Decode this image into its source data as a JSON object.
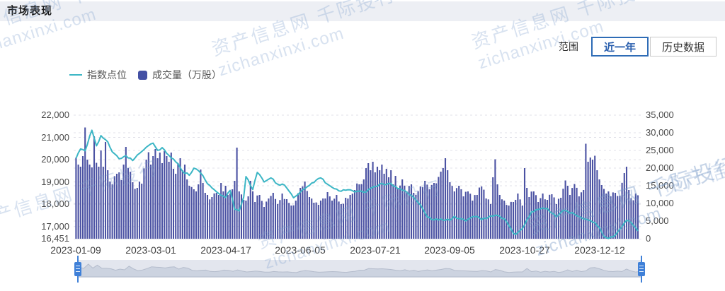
{
  "page": {
    "title": "市场表现"
  },
  "watermark": {
    "line1": "资产信息网 千际投行",
    "line2": "zichanxinxi.com"
  },
  "controls": {
    "range_label": "范围",
    "buttons": [
      {
        "label": "近一年",
        "active": true
      },
      {
        "label": "历史数据",
        "active": false
      }
    ],
    "accent": "#2e6cb6"
  },
  "legend": [
    {
      "label": "指数点位",
      "type": "line",
      "color": "#3cb6c5"
    },
    {
      "label": "成交量（万股）",
      "type": "bar",
      "color": "#4b52a3"
    }
  ],
  "chart_data": {
    "type": "bar+line",
    "n_points": 249,
    "grid": "dashed",
    "grid_color": "#e0e0e8",
    "x_ticks": [
      {
        "day": 0,
        "label": "2023-01-09"
      },
      {
        "day": 33,
        "label": "2023-03-01"
      },
      {
        "day": 66,
        "label": "2023-04-17"
      },
      {
        "day": 99,
        "label": "2023-06-05"
      },
      {
        "day": 132,
        "label": "2023-07-21"
      },
      {
        "day": 165,
        "label": "2023-09-05"
      },
      {
        "day": 198,
        "label": "2023-10-27"
      },
      {
        "day": 231,
        "label": "2023-12-12"
      }
    ],
    "left_axis": {
      "name": "指数点位",
      "min": 16451,
      "max": 22000,
      "ticks": [
        {
          "v": 22000,
          "label": "22,000"
        },
        {
          "v": 21000,
          "label": "21,000"
        },
        {
          "v": 20000,
          "label": "20,000"
        },
        {
          "v": 19000,
          "label": "19,000"
        },
        {
          "v": 18000,
          "label": "18,000"
        },
        {
          "v": 17000,
          "label": "17,000"
        },
        {
          "v": 16451,
          "label": "16,451"
        }
      ]
    },
    "right_axis": {
      "name": "成交量（万股）",
      "min": 0,
      "max": 35000,
      "ticks": [
        {
          "v": 35000,
          "label": "35,000"
        },
        {
          "v": 30000,
          "label": "30,000"
        },
        {
          "v": 25000,
          "label": "25,000"
        },
        {
          "v": 20000,
          "label": "20,000"
        },
        {
          "v": 15000,
          "label": "15,000"
        },
        {
          "v": 10000,
          "label": "10,000"
        },
        {
          "v": 5000,
          "label": "5,000"
        },
        {
          "v": 0,
          "label": "0"
        }
      ]
    },
    "series": [
      {
        "name": "指数点位",
        "type": "line",
        "axis": "left",
        "color": "#3cb6c5",
        "anchors": [
          [
            0,
            20060
          ],
          [
            2,
            20480
          ],
          [
            4,
            20400
          ],
          [
            7,
            21320
          ],
          [
            9,
            20620
          ],
          [
            11,
            21080
          ],
          [
            14,
            20800
          ],
          [
            16,
            20350
          ],
          [
            19,
            20040
          ],
          [
            22,
            20180
          ],
          [
            25,
            19960
          ],
          [
            28,
            20280
          ],
          [
            31,
            20560
          ],
          [
            34,
            20740
          ],
          [
            36,
            20420
          ],
          [
            38,
            20540
          ],
          [
            42,
            20080
          ],
          [
            45,
            19820
          ],
          [
            47,
            19480
          ],
          [
            50,
            19300
          ],
          [
            52,
            19620
          ],
          [
            55,
            19400
          ],
          [
            58,
            18920
          ],
          [
            61,
            18650
          ],
          [
            63,
            18480
          ],
          [
            66,
            18300
          ],
          [
            68,
            18620
          ],
          [
            70,
            17780
          ],
          [
            72,
            17700
          ],
          [
            74,
            18320
          ],
          [
            75,
            19240
          ],
          [
            78,
            18660
          ],
          [
            80,
            19430
          ],
          [
            83,
            19000
          ],
          [
            86,
            19180
          ],
          [
            89,
            18900
          ],
          [
            92,
            18860
          ],
          [
            96,
            18290
          ],
          [
            99,
            18550
          ],
          [
            101,
            18700
          ],
          [
            104,
            18950
          ],
          [
            108,
            19180
          ],
          [
            111,
            18900
          ],
          [
            116,
            18600
          ],
          [
            120,
            18650
          ],
          [
            123,
            18550
          ],
          [
            128,
            18550
          ],
          [
            132,
            18800
          ],
          [
            134,
            18900
          ],
          [
            139,
            18930
          ],
          [
            142,
            18700
          ],
          [
            146,
            18540
          ],
          [
            150,
            18200
          ],
          [
            153,
            17800
          ],
          [
            155,
            17430
          ],
          [
            158,
            17300
          ],
          [
            161,
            17340
          ],
          [
            165,
            17280
          ],
          [
            167,
            17460
          ],
          [
            169,
            17350
          ],
          [
            172,
            17250
          ],
          [
            174,
            17380
          ],
          [
            177,
            17450
          ],
          [
            179,
            17300
          ],
          [
            182,
            17420
          ],
          [
            186,
            17500
          ],
          [
            189,
            17350
          ],
          [
            191,
            17050
          ],
          [
            193,
            16700
          ],
          [
            194,
            16640
          ],
          [
            197,
            16900
          ],
          [
            199,
            17300
          ],
          [
            201,
            17660
          ],
          [
            203,
            17750
          ],
          [
            208,
            17810
          ],
          [
            212,
            17430
          ],
          [
            215,
            17720
          ],
          [
            220,
            17550
          ],
          [
            223,
            17400
          ],
          [
            225,
            17340
          ],
          [
            229,
            17180
          ],
          [
            231,
            16950
          ],
          [
            233,
            16560
          ],
          [
            235,
            16460
          ],
          [
            237,
            16540
          ],
          [
            239,
            16750
          ],
          [
            241,
            17000
          ],
          [
            243,
            17280
          ],
          [
            245,
            17180
          ],
          [
            247,
            16950
          ],
          [
            248,
            16800
          ]
        ]
      },
      {
        "name": "成交量（万股）",
        "type": "bar",
        "axis": "right",
        "color": "#4b52a3",
        "anchors": [
          [
            0,
            23000
          ],
          [
            1,
            21000
          ],
          [
            2,
            20400
          ],
          [
            3,
            23400
          ],
          [
            4,
            31500
          ],
          [
            5,
            22400
          ],
          [
            6,
            21000
          ],
          [
            7,
            20200
          ],
          [
            8,
            29000
          ],
          [
            9,
            21500
          ],
          [
            10,
            20400
          ],
          [
            11,
            25000
          ],
          [
            12,
            20400
          ],
          [
            13,
            27400
          ],
          [
            14,
            19400
          ],
          [
            15,
            16200
          ],
          [
            16,
            15400
          ],
          [
            18,
            18400
          ],
          [
            20,
            16600
          ],
          [
            21,
            21000
          ],
          [
            22,
            26000
          ],
          [
            23,
            20000
          ],
          [
            25,
            16000
          ],
          [
            27,
            14400
          ],
          [
            29,
            15600
          ],
          [
            31,
            22400
          ],
          [
            32,
            24500
          ],
          [
            33,
            21000
          ],
          [
            34,
            23400
          ],
          [
            35,
            25400
          ],
          [
            36,
            22800
          ],
          [
            37,
            24400
          ],
          [
            38,
            21400
          ],
          [
            39,
            24800
          ],
          [
            40,
            23400
          ],
          [
            41,
            21800
          ],
          [
            42,
            24400
          ],
          [
            43,
            19800
          ],
          [
            44,
            18400
          ],
          [
            45,
            21400
          ],
          [
            46,
            22800
          ],
          [
            47,
            19400
          ],
          [
            48,
            21000
          ],
          [
            49,
            16800
          ],
          [
            50,
            15000
          ],
          [
            52,
            14000
          ],
          [
            53,
            13400
          ],
          [
            54,
            15400
          ],
          [
            55,
            19600
          ],
          [
            56,
            15800
          ],
          [
            57,
            13000
          ],
          [
            58,
            12400
          ],
          [
            60,
            11800
          ],
          [
            62,
            13000
          ],
          [
            63,
            12400
          ],
          [
            64,
            15800
          ],
          [
            65,
            13400
          ],
          [
            66,
            15000
          ],
          [
            67,
            12400
          ],
          [
            68,
            12800
          ],
          [
            69,
            14000
          ],
          [
            70,
            16400
          ],
          [
            71,
            25800
          ],
          [
            72,
            13400
          ],
          [
            74,
            11000
          ],
          [
            76,
            12000
          ],
          [
            77,
            16400
          ],
          [
            79,
            10400
          ],
          [
            81,
            12400
          ],
          [
            83,
            9000
          ],
          [
            85,
            11400
          ],
          [
            87,
            13000
          ],
          [
            89,
            9800
          ],
          [
            91,
            12800
          ],
          [
            93,
            11200
          ],
          [
            95,
            9400
          ],
          [
            97,
            10800
          ],
          [
            99,
            14400
          ],
          [
            101,
            16200
          ],
          [
            103,
            11800
          ],
          [
            105,
            10200
          ],
          [
            107,
            9600
          ],
          [
            109,
            11400
          ],
          [
            111,
            13200
          ],
          [
            113,
            10800
          ],
          [
            115,
            12400
          ],
          [
            117,
            9800
          ],
          [
            119,
            11600
          ],
          [
            121,
            12400
          ],
          [
            123,
            13800
          ],
          [
            125,
            15400
          ],
          [
            127,
            16800
          ],
          [
            129,
            21400
          ],
          [
            130,
            19400
          ],
          [
            131,
            21800
          ],
          [
            132,
            18800
          ],
          [
            133,
            20400
          ],
          [
            134,
            19400
          ],
          [
            135,
            21000
          ],
          [
            136,
            18400
          ],
          [
            137,
            19800
          ],
          [
            138,
            17400
          ],
          [
            139,
            19400
          ],
          [
            140,
            15400
          ],
          [
            141,
            17800
          ],
          [
            142,
            14400
          ],
          [
            144,
            16800
          ],
          [
            146,
            13400
          ],
          [
            148,
            15400
          ],
          [
            150,
            12400
          ],
          [
            152,
            14800
          ],
          [
            154,
            16400
          ],
          [
            156,
            14000
          ],
          [
            158,
            15800
          ],
          [
            160,
            17500
          ],
          [
            161,
            19000
          ],
          [
            163,
            22800
          ],
          [
            164,
            19400
          ],
          [
            165,
            16000
          ],
          [
            167,
            13400
          ],
          [
            169,
            15000
          ],
          [
            171,
            12000
          ],
          [
            173,
            13400
          ],
          [
            175,
            10800
          ],
          [
            177,
            12400
          ],
          [
            179,
            14800
          ],
          [
            181,
            11400
          ],
          [
            183,
            9800
          ],
          [
            185,
            22500
          ],
          [
            186,
            15400
          ],
          [
            187,
            12400
          ],
          [
            189,
            10800
          ],
          [
            191,
            9400
          ],
          [
            193,
            10400
          ],
          [
            195,
            12800
          ],
          [
            197,
            9400
          ],
          [
            198,
            20000
          ],
          [
            199,
            14400
          ],
          [
            200,
            11800
          ],
          [
            202,
            13400
          ],
          [
            204,
            10400
          ],
          [
            206,
            12800
          ],
          [
            208,
            11000
          ],
          [
            210,
            12600
          ],
          [
            212,
            9800
          ],
          [
            214,
            11600
          ],
          [
            216,
            16500
          ],
          [
            218,
            12400
          ],
          [
            220,
            15500
          ],
          [
            222,
            12000
          ],
          [
            224,
            13800
          ],
          [
            225,
            26900
          ],
          [
            226,
            21800
          ],
          [
            227,
            23000
          ],
          [
            228,
            22400
          ],
          [
            229,
            23500
          ],
          [
            230,
            19400
          ],
          [
            231,
            16800
          ],
          [
            232,
            15200
          ],
          [
            233,
            14100
          ],
          [
            234,
            12800
          ],
          [
            235,
            13400
          ],
          [
            236,
            12000
          ],
          [
            238,
            13000
          ],
          [
            240,
            12200
          ],
          [
            242,
            18600
          ],
          [
            243,
            20400
          ],
          [
            244,
            13800
          ],
          [
            245,
            11500
          ],
          [
            246,
            10900
          ],
          [
            247,
            12800
          ],
          [
            248,
            12300
          ]
        ]
      }
    ]
  },
  "slider": {
    "track_color": "#e3e6ee",
    "shadow_fill": "#ccd3e0",
    "shadow_stroke": "#b4bccc",
    "handle_color": "#3f80d8",
    "range": [
      0,
      100
    ]
  }
}
